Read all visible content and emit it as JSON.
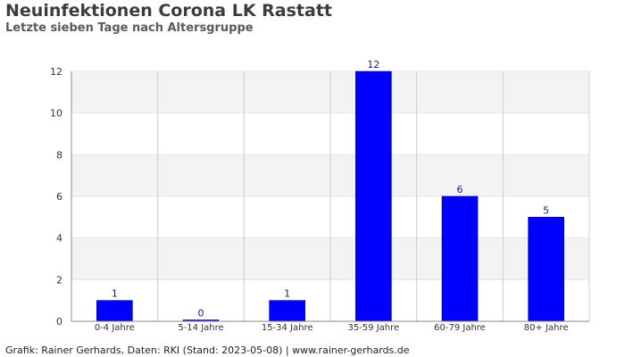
{
  "header": {
    "title": "Neuinfektionen Corona LK Rastatt",
    "subtitle": "Letzte sieben Tage nach Altersgruppe"
  },
  "footer": {
    "credit": "Grafik: Rainer Gerhards, Daten: RKI (Stand: 2023-05-08) | www.rainer-gerhards.de"
  },
  "chart_data": {
    "type": "bar",
    "title": "Neuinfektionen Corona LK Rastatt",
    "subtitle": "Letzte sieben Tage nach Altersgruppe",
    "xlabel": "",
    "ylabel": "",
    "categories": [
      "0-4 Jahre",
      "5-14 Jahre",
      "15-34 Jahre",
      "35-59 Jahre",
      "60-79 Jahre",
      "80+ Jahre"
    ],
    "values": [
      1,
      0,
      1,
      12,
      6,
      5
    ],
    "ylim": [
      0,
      12
    ],
    "yticks": [
      0,
      2,
      4,
      6,
      8,
      10,
      12
    ],
    "grid": true,
    "bar_color": "#0000ff",
    "legend": "none"
  },
  "colors": {
    "bar": "#0000ff",
    "band_light": "#f3f3f3",
    "band_white": "#ffffff",
    "gridline": "#cccccc",
    "axis": "#888888"
  }
}
